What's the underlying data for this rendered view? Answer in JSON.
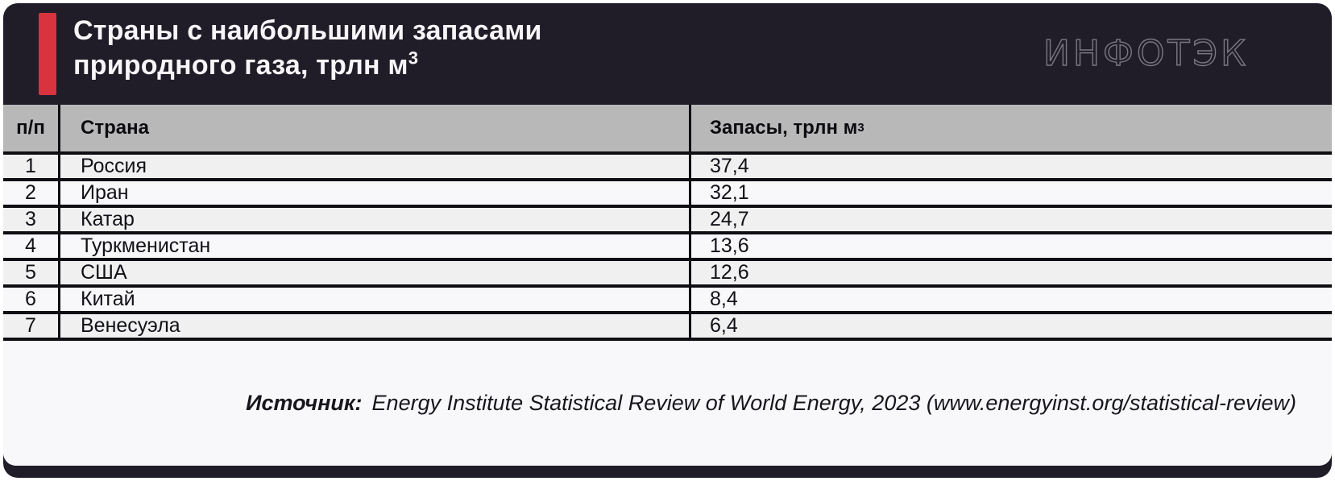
{
  "header": {
    "title_line1": "Страны с наибольшими запасами",
    "title_line2": "природного газа, трлн м",
    "title_superscript": "3",
    "logo_text": "ИНФОТЭК"
  },
  "table": {
    "columns": [
      {
        "key": "num",
        "label": "п/п"
      },
      {
        "key": "country",
        "label": "Страна"
      },
      {
        "key": "reserves",
        "label": "Запасы, трлн м",
        "label_superscript": "3"
      }
    ],
    "rows": [
      {
        "num": "1",
        "country": "Россия",
        "reserves": "37,4"
      },
      {
        "num": "2",
        "country": "Иран",
        "reserves": "32,1"
      },
      {
        "num": "3",
        "country": "Катар",
        "reserves": "24,7"
      },
      {
        "num": "4",
        "country": "Туркменистан",
        "reserves": "13,6"
      },
      {
        "num": "5",
        "country": "США",
        "reserves": "12,6"
      },
      {
        "num": "6",
        "country": "Китай",
        "reserves": "8,4"
      },
      {
        "num": "7",
        "country": "Венесуэла",
        "reserves": "6,4"
      }
    ]
  },
  "source": {
    "label": "Источник:",
    "text": "Energy Institute Statistical Review of World Energy, 2023 (www.energyinst.org/statistical-review)"
  },
  "colors": {
    "card_dark": "#201c28",
    "accent_red": "#d9333f",
    "table_header_gray": "#b9b8b9",
    "row_odd": "#f0f0f1",
    "row_even": "#f8f8fa",
    "border_black": "#0f0e13",
    "title_white": "#f6f5f7",
    "logo_gray": "#7b7883"
  },
  "chart_data": {
    "type": "table",
    "title": "Страны с наибольшими запасами природного газа, трлн м³",
    "categories": [
      "Россия",
      "Иран",
      "Катар",
      "Туркменистан",
      "США",
      "Китай",
      "Венесуэла"
    ],
    "values": [
      37.4,
      32.1,
      24.7,
      13.6,
      12.6,
      8.4,
      6.4
    ],
    "unit": "трлн м³",
    "columns": [
      "п/п",
      "Страна",
      "Запасы, трлн м³"
    ],
    "source": "Energy Institute Statistical Review of World Energy, 2023 (www.energyinst.org/statistical-review)"
  }
}
